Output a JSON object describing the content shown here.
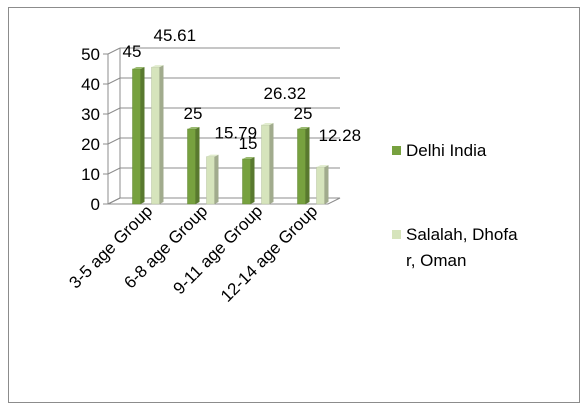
{
  "chart_data": {
    "type": "bar",
    "style": "3d-clustered-column",
    "title": "",
    "xlabel": "",
    "ylabel": "",
    "categories": [
      "3-5 age Group",
      "6-8 age Group",
      "9-11 age Group",
      "12-14 age Group"
    ],
    "series": [
      {
        "name": "Delhi India",
        "values": [
          45,
          25,
          15,
          25
        ],
        "labels": [
          "45",
          "25",
          "15",
          "25"
        ],
        "color": "#77a13f"
      },
      {
        "name": "Salalah, Dhofar, Oman",
        "values": [
          45.61,
          15.79,
          26.32,
          12.28
        ],
        "labels": [
          "45.61",
          "15.79",
          "26.32",
          "12.28"
        ],
        "color": "#d6e4bc"
      }
    ],
    "y_ticks": [
      "0",
      "10",
      "20",
      "30",
      "40",
      "50"
    ],
    "ylim": [
      0,
      50
    ],
    "grid": true,
    "legend_position": "right",
    "legend_lines": [
      [
        "Delhi India"
      ],
      [
        "Salalah, Dhofa",
        "r, Oman"
      ]
    ]
  }
}
